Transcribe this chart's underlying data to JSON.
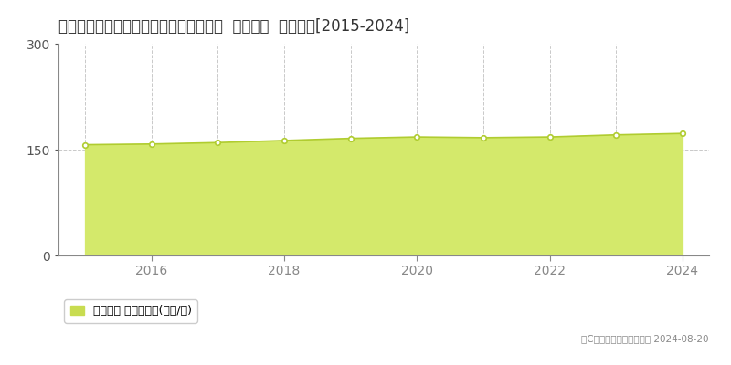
{
  "title": "東京都杉並区久我山５丁目２８３番７外  地価公示  地価推移[2015-2024]",
  "years": [
    2015,
    2016,
    2017,
    2018,
    2019,
    2020,
    2021,
    2022,
    2023,
    2024
  ],
  "values": [
    157,
    158,
    160,
    163,
    166,
    168,
    167,
    168,
    171,
    173
  ],
  "ylim": [
    0,
    300
  ],
  "yticks": [
    0,
    150,
    300
  ],
  "fill_color": "#d4e96b",
  "line_color": "#b0cc30",
  "marker_facecolor": "#ffffff",
  "marker_edgecolor": "#b0cc30",
  "grid_color": "#bbbbbb",
  "bg_color": "#ffffff",
  "legend_label": "地価公示 平均嵪単価(万円/嵪)",
  "legend_color": "#c8dc50",
  "copyright_text": "（C）土地価格ドットコム 2024-08-20",
  "title_fontsize": 12,
  "tick_fontsize": 10,
  "legend_fontsize": 9
}
